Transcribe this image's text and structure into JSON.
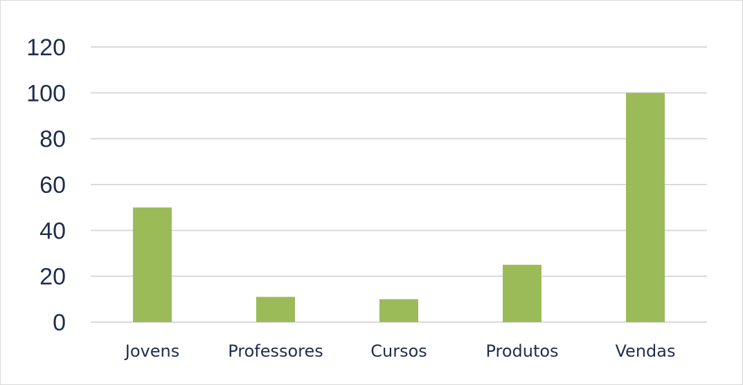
{
  "chart_data": {
    "type": "bar",
    "categories": [
      "Jovens",
      "Professores",
      "Cursos",
      "Produtos",
      "Vendas"
    ],
    "values": [
      50,
      11,
      10,
      25,
      100
    ],
    "title": "",
    "xlabel": "",
    "ylabel": "",
    "ylim": [
      0,
      120
    ],
    "yticks": [
      0,
      20,
      40,
      60,
      80,
      100,
      120
    ],
    "grid": true,
    "legend": "none",
    "colors": {
      "bar": "#9bbb59",
      "grid": "#d9d9d9",
      "text": "#1f2d4d"
    }
  }
}
